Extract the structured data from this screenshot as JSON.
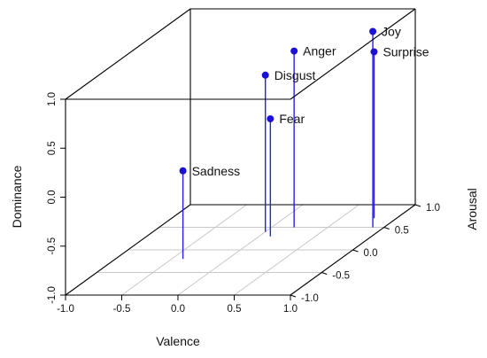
{
  "chart_data": {
    "type": "scatter",
    "subtype": "3d-stem",
    "title": "",
    "xlabel": "Valence",
    "ylabel": "Arousal",
    "zlabel": "Dominance",
    "xlim": [
      -1.0,
      1.0
    ],
    "ylim": [
      -1.0,
      1.0
    ],
    "zlim": [
      -1.0,
      1.0
    ],
    "xticks": [
      "-1.0",
      "-0.5",
      "0.0",
      "0.5",
      "1.0"
    ],
    "yticks": [
      "-1.0",
      "-0.5",
      "0.0",
      "0.5",
      "1.0"
    ],
    "zticks": [
      "-1.0",
      "-0.5",
      "0.0",
      "0.5",
      "1.0"
    ],
    "points": [
      {
        "label": "Anger",
        "valence": 0.2,
        "arousal": 0.5,
        "dominance": 0.8
      },
      {
        "label": "Disgust",
        "valence": 0.0,
        "arousal": 0.4,
        "dominance": 0.6
      },
      {
        "label": "Fear",
        "valence": 0.1,
        "arousal": 0.3,
        "dominance": 0.2
      },
      {
        "label": "Sadness",
        "valence": -0.4,
        "arousal": -0.2,
        "dominance": -0.1
      },
      {
        "label": "Joy",
        "valence": 0.9,
        "arousal": 0.5,
        "dominance": 1.0
      },
      {
        "label": "Surprise",
        "valence": 0.8,
        "arousal": 0.7,
        "dominance": 0.7
      }
    ],
    "grid": "floor",
    "colors": {
      "points": "#1c10d6",
      "stems": "#2a20e0",
      "box": "#000000",
      "floor_grid": "#c8c8c8"
    }
  }
}
